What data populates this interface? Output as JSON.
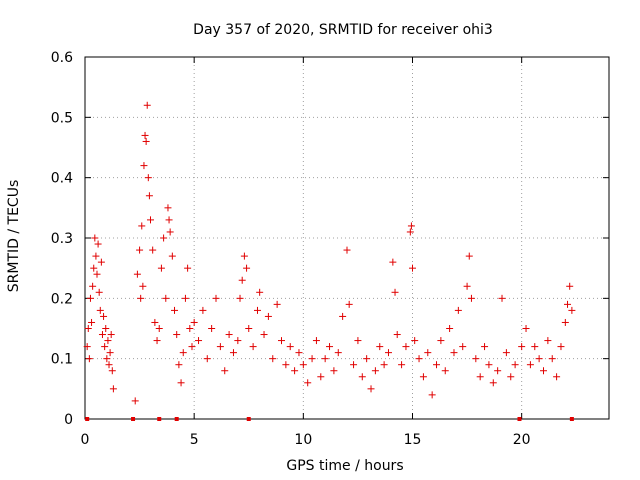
{
  "chart_data": {
    "type": "scatter",
    "title": "Day 357 of 2020, SRMTID for receiver ohi3",
    "xlabel": "GPS time / hours",
    "ylabel": "SRMTID / TECUs",
    "xlim": [
      0,
      24
    ],
    "ylim": [
      0,
      0.6
    ],
    "x_ticks": [
      0,
      5,
      10,
      15,
      20
    ],
    "x_tick_labels": [
      "0",
      "5",
      "10",
      "15",
      "20"
    ],
    "y_ticks": [
      0,
      0.1,
      0.2,
      0.3,
      0.4,
      0.5,
      0.6
    ],
    "y_tick_labels": [
      "0",
      "0.1",
      "0.2",
      "0.3",
      "0.4",
      "0.5",
      "0.6"
    ],
    "grid": true,
    "marker": "+",
    "color": "#e00000",
    "series": [
      {
        "name": "SRMTID",
        "points": [
          [
            0.1,
            0.12
          ],
          [
            0.15,
            0.15
          ],
          [
            0.2,
            0.1
          ],
          [
            0.25,
            0.2
          ],
          [
            0.3,
            0.16
          ],
          [
            0.35,
            0.22
          ],
          [
            0.4,
            0.25
          ],
          [
            0.45,
            0.3
          ],
          [
            0.5,
            0.27
          ],
          [
            0.55,
            0.24
          ],
          [
            0.6,
            0.29
          ],
          [
            0.65,
            0.21
          ],
          [
            0.7,
            0.18
          ],
          [
            0.75,
            0.26
          ],
          [
            0.8,
            0.14
          ],
          [
            0.85,
            0.17
          ],
          [
            0.9,
            0.12
          ],
          [
            0.95,
            0.15
          ],
          [
            1.0,
            0.1
          ],
          [
            1.05,
            0.13
          ],
          [
            1.1,
            0.09
          ],
          [
            1.15,
            0.11
          ],
          [
            1.2,
            0.14
          ],
          [
            1.25,
            0.08
          ],
          [
            1.3,
            0.05
          ],
          [
            2.3,
            0.03
          ],
          [
            2.4,
            0.24
          ],
          [
            2.5,
            0.28
          ],
          [
            2.55,
            0.2
          ],
          [
            2.6,
            0.32
          ],
          [
            2.65,
            0.22
          ],
          [
            2.7,
            0.42
          ],
          [
            2.75,
            0.47
          ],
          [
            2.8,
            0.46
          ],
          [
            2.85,
            0.52
          ],
          [
            2.9,
            0.4
          ],
          [
            2.95,
            0.37
          ],
          [
            3.0,
            0.33
          ],
          [
            3.1,
            0.28
          ],
          [
            3.2,
            0.16
          ],
          [
            3.3,
            0.13
          ],
          [
            3.4,
            0.15
          ],
          [
            3.5,
            0.25
          ],
          [
            3.6,
            0.3
          ],
          [
            3.7,
            0.2
          ],
          [
            3.8,
            0.35
          ],
          [
            3.85,
            0.33
          ],
          [
            3.9,
            0.31
          ],
          [
            4.0,
            0.27
          ],
          [
            4.1,
            0.18
          ],
          [
            4.2,
            0.14
          ],
          [
            4.3,
            0.09
          ],
          [
            4.4,
            0.06
          ],
          [
            4.5,
            0.11
          ],
          [
            4.6,
            0.2
          ],
          [
            4.7,
            0.25
          ],
          [
            4.8,
            0.15
          ],
          [
            4.9,
            0.12
          ],
          [
            5.0,
            0.16
          ],
          [
            5.2,
            0.13
          ],
          [
            5.4,
            0.18
          ],
          [
            5.6,
            0.1
          ],
          [
            5.8,
            0.15
          ],
          [
            6.0,
            0.2
          ],
          [
            6.2,
            0.12
          ],
          [
            6.4,
            0.08
          ],
          [
            6.6,
            0.14
          ],
          [
            6.8,
            0.11
          ],
          [
            7.0,
            0.13
          ],
          [
            7.1,
            0.2
          ],
          [
            7.2,
            0.23
          ],
          [
            7.3,
            0.27
          ],
          [
            7.4,
            0.25
          ],
          [
            7.5,
            0.15
          ],
          [
            7.7,
            0.12
          ],
          [
            7.9,
            0.18
          ],
          [
            8.0,
            0.21
          ],
          [
            8.2,
            0.14
          ],
          [
            8.4,
            0.17
          ],
          [
            8.6,
            0.1
          ],
          [
            8.8,
            0.19
          ],
          [
            9.0,
            0.13
          ],
          [
            9.2,
            0.09
          ],
          [
            9.4,
            0.12
          ],
          [
            9.6,
            0.08
          ],
          [
            9.8,
            0.11
          ],
          [
            10.0,
            0.09
          ],
          [
            10.2,
            0.06
          ],
          [
            10.4,
            0.1
          ],
          [
            10.6,
            0.13
          ],
          [
            10.8,
            0.07
          ],
          [
            11.0,
            0.1
          ],
          [
            11.2,
            0.12
          ],
          [
            11.4,
            0.08
          ],
          [
            11.6,
            0.11
          ],
          [
            11.8,
            0.17
          ],
          [
            12.0,
            0.28
          ],
          [
            12.1,
            0.19
          ],
          [
            12.3,
            0.09
          ],
          [
            12.5,
            0.13
          ],
          [
            12.7,
            0.07
          ],
          [
            12.9,
            0.1
          ],
          [
            13.1,
            0.05
          ],
          [
            13.3,
            0.08
          ],
          [
            13.5,
            0.12
          ],
          [
            13.7,
            0.09
          ],
          [
            13.9,
            0.11
          ],
          [
            14.1,
            0.26
          ],
          [
            14.2,
            0.21
          ],
          [
            14.3,
            0.14
          ],
          [
            14.5,
            0.09
          ],
          [
            14.7,
            0.12
          ],
          [
            14.9,
            0.31
          ],
          [
            14.95,
            0.32
          ],
          [
            15.0,
            0.25
          ],
          [
            15.1,
            0.13
          ],
          [
            15.3,
            0.1
          ],
          [
            15.5,
            0.07
          ],
          [
            15.7,
            0.11
          ],
          [
            15.9,
            0.04
          ],
          [
            16.1,
            0.09
          ],
          [
            16.3,
            0.13
          ],
          [
            16.5,
            0.08
          ],
          [
            16.7,
            0.15
          ],
          [
            16.9,
            0.11
          ],
          [
            17.1,
            0.18
          ],
          [
            17.3,
            0.12
          ],
          [
            17.5,
            0.22
          ],
          [
            17.6,
            0.27
          ],
          [
            17.7,
            0.2
          ],
          [
            17.9,
            0.1
          ],
          [
            18.1,
            0.07
          ],
          [
            18.3,
            0.12
          ],
          [
            18.5,
            0.09
          ],
          [
            18.7,
            0.06
          ],
          [
            18.9,
            0.08
          ],
          [
            19.1,
            0.2
          ],
          [
            19.3,
            0.11
          ],
          [
            19.5,
            0.07
          ],
          [
            19.7,
            0.09
          ],
          [
            20.0,
            0.12
          ],
          [
            20.2,
            0.15
          ],
          [
            20.4,
            0.09
          ],
          [
            20.6,
            0.12
          ],
          [
            20.8,
            0.1
          ],
          [
            21.0,
            0.08
          ],
          [
            21.2,
            0.13
          ],
          [
            21.4,
            0.1
          ],
          [
            21.6,
            0.07
          ],
          [
            21.8,
            0.12
          ],
          [
            22.0,
            0.16
          ],
          [
            22.1,
            0.19
          ],
          [
            22.2,
            0.22
          ],
          [
            22.3,
            0.18
          ]
        ]
      }
    ],
    "baseline_flags_x": [
      0.1,
      2.2,
      3.4,
      4.2,
      7.5,
      19.9,
      22.3
    ]
  }
}
